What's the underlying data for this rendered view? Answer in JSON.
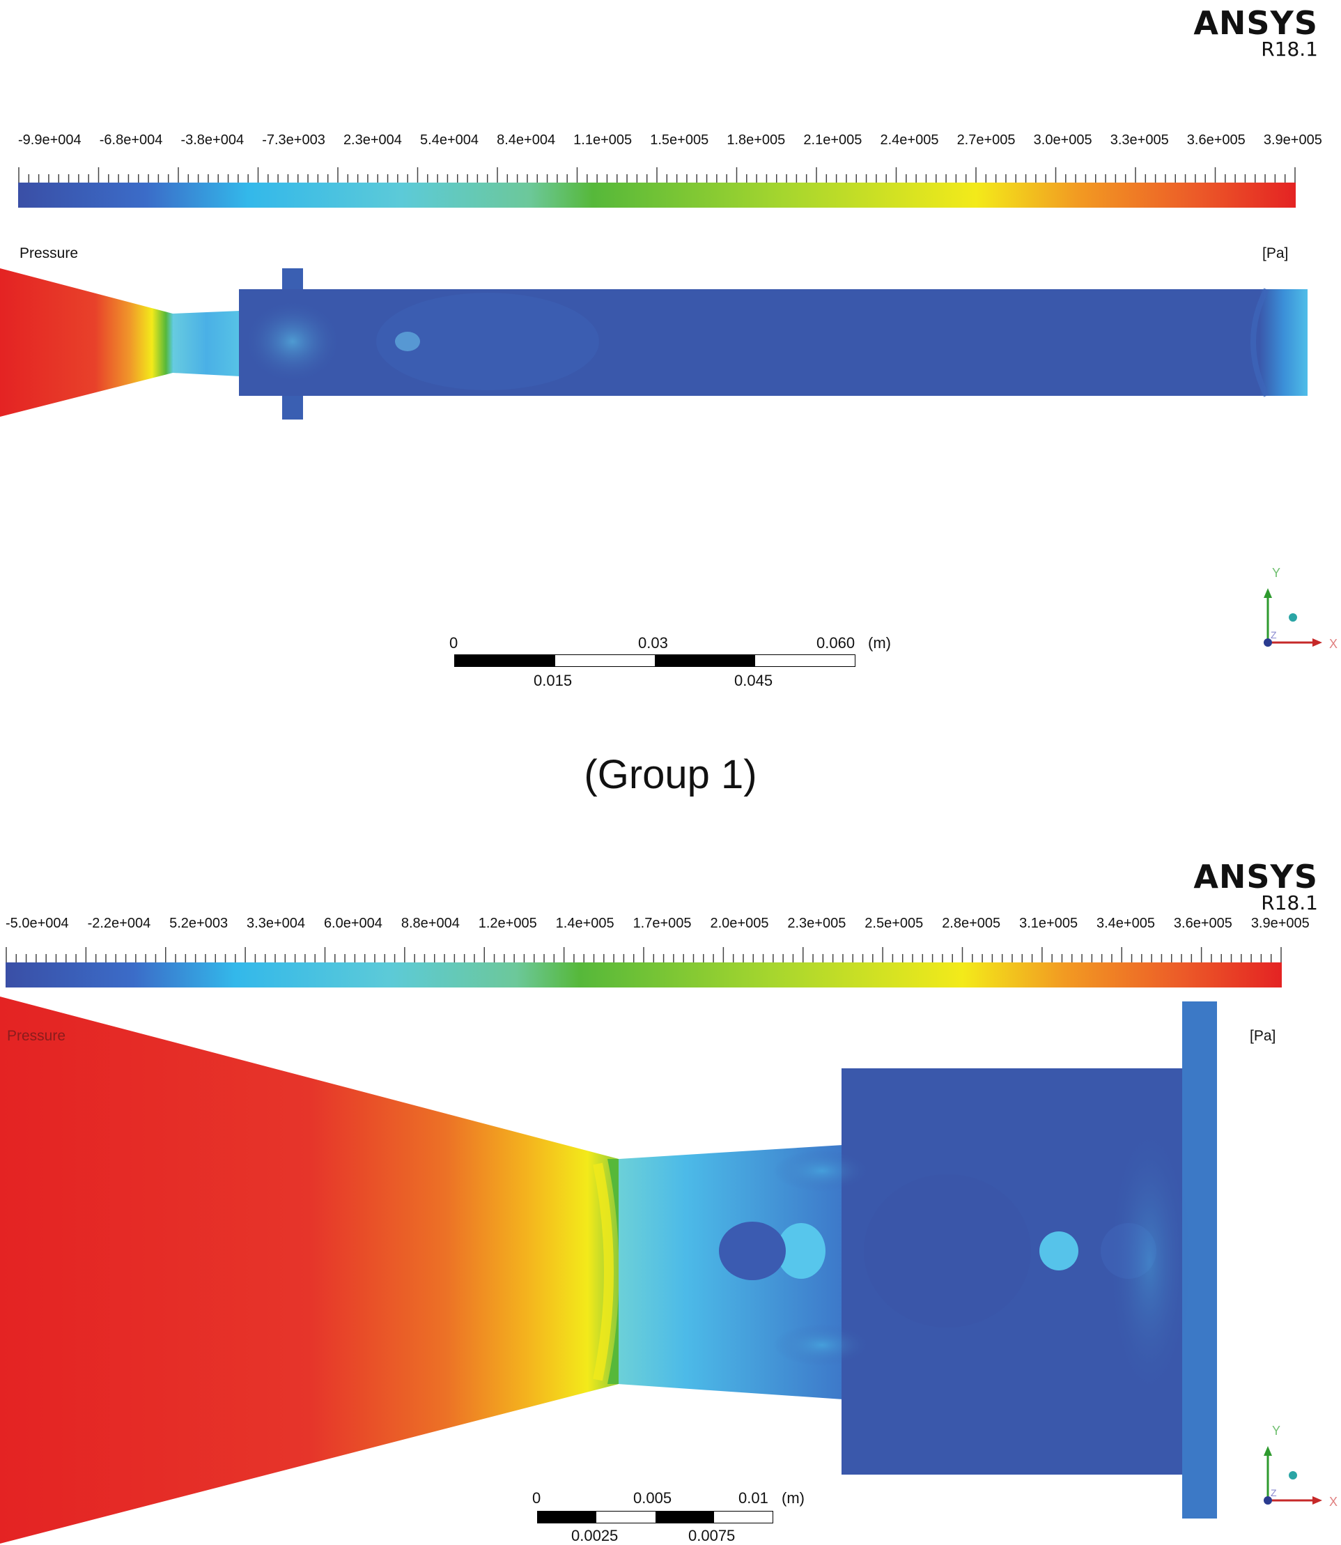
{
  "caption": "(Group 1)",
  "group1": {
    "brand": {
      "name": "ANSYS",
      "version": "R18.1"
    },
    "legend": {
      "variable": "Pressure",
      "unit": "[Pa]",
      "ticks": [
        "-9.9e+004",
        "-6.8e+004",
        "-3.8e+004",
        "-7.3e+003",
        "2.3e+004",
        "5.4e+004",
        "8.4e+004",
        "1.1e+005",
        "1.5e+005",
        "1.8e+005",
        "2.1e+005",
        "2.4e+005",
        "2.7e+005",
        "3.0e+005",
        "3.3e+005",
        "3.6e+005",
        "3.9e+005"
      ]
    },
    "scale": {
      "top_labels": [
        "0",
        "0.03",
        "0.060"
      ],
      "unit": "(m)",
      "bottom_labels": [
        "0.015",
        "0.045"
      ]
    },
    "triad": {
      "y": "Y",
      "z": "Z",
      "x": "X"
    }
  },
  "group2": {
    "brand": {
      "name": "ANSYS",
      "version": "R18.1"
    },
    "legend": {
      "variable": "Pressure",
      "unit": "[Pa]",
      "ticks": [
        "-5.0e+004",
        "-2.2e+004",
        "5.2e+003",
        "3.3e+004",
        "6.0e+004",
        "8.8e+004",
        "1.2e+005",
        "1.4e+005",
        "1.7e+005",
        "2.0e+005",
        "2.3e+005",
        "2.5e+005",
        "2.8e+005",
        "3.1e+005",
        "3.4e+005",
        "3.6e+005",
        "3.9e+005"
      ]
    },
    "scale": {
      "top_labels": [
        "0",
        "0.005",
        "0.01"
      ],
      "unit": "(m)",
      "bottom_labels": [
        "0.0025",
        "0.0075"
      ]
    },
    "triad": {
      "y": "Y",
      "z": "Z",
      "x": "X"
    }
  },
  "colors": {
    "high": "#e42323",
    "low": "#3a58ab",
    "mid_green": "#56b83a",
    "yellow": "#f3ea1a",
    "cyan": "#5ccad8"
  }
}
